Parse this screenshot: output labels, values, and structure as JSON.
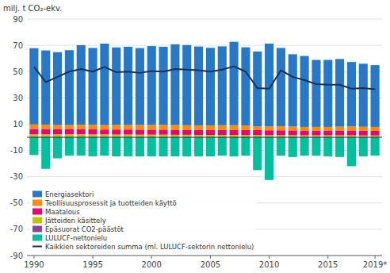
{
  "chart_data": {
    "type": "bar",
    "stacked": true,
    "y_label": "milj. t CO₂-ekv.",
    "x": [
      1990,
      1991,
      1992,
      1993,
      1994,
      1995,
      1996,
      1997,
      1998,
      1999,
      2000,
      2001,
      2002,
      2003,
      2004,
      2005,
      2006,
      2007,
      2008,
      2009,
      2010,
      2011,
      2012,
      2013,
      2014,
      2015,
      2016,
      2017,
      2018,
      2019
    ],
    "series": [
      {
        "name": "Energiasektori",
        "color": "#2878c8",
        "values": [
          58.0,
          56.5,
          55.5,
          57.0,
          60.5,
          58.5,
          62.0,
          59.0,
          59.5,
          58.5,
          60.0,
          59.5,
          61.5,
          61.0,
          60.0,
          59.0,
          60.0,
          63.5,
          59.5,
          57.0,
          63.0,
          59.5,
          55.0,
          54.0,
          51.0,
          51.0,
          51.5,
          49.0,
          48.0,
          47.0
        ]
      },
      {
        "name": "Teollisuusprosessit ja tuotteiden käyttö",
        "color": "#ff8c00",
        "values": [
          3.5,
          3.3,
          3.2,
          3.2,
          3.5,
          3.5,
          3.4,
          3.5,
          3.5,
          3.6,
          3.6,
          3.6,
          3.6,
          3.5,
          3.5,
          3.5,
          3.6,
          3.6,
          3.5,
          2.8,
          3.0,
          3.2,
          3.0,
          2.8,
          2.8,
          2.8,
          3.0,
          3.2,
          3.0,
          3.0
        ]
      },
      {
        "name": "Maatalous",
        "color": "#e8007d",
        "values": [
          4.0,
          4.0,
          3.8,
          3.8,
          3.8,
          3.8,
          3.7,
          3.8,
          3.8,
          3.8,
          3.8,
          3.8,
          3.8,
          3.8,
          3.8,
          3.8,
          3.8,
          3.8,
          3.8,
          3.8,
          3.7,
          3.7,
          3.6,
          3.6,
          3.6,
          3.6,
          3.6,
          3.6,
          3.6,
          3.5
        ]
      },
      {
        "name": "Jätteiden käsittely",
        "color": "#b8c800",
        "values": [
          2.0,
          2.0,
          2.0,
          2.0,
          2.0,
          1.9,
          1.9,
          1.8,
          1.8,
          1.7,
          1.7,
          1.7,
          1.6,
          1.6,
          1.5,
          1.5,
          1.5,
          1.5,
          1.4,
          1.4,
          1.3,
          1.3,
          1.3,
          1.2,
          1.2,
          1.2,
          1.2,
          1.2,
          1.1,
          1.1
        ]
      },
      {
        "name": "Epäsuorat CO2-päästöt",
        "color": "#9040a0",
        "values": [
          0.3,
          0.3,
          0.3,
          0.3,
          0.3,
          0.3,
          0.3,
          0.3,
          0.3,
          0.3,
          0.3,
          0.3,
          0.3,
          0.3,
          0.3,
          0.3,
          0.3,
          0.3,
          0.3,
          0.3,
          0.3,
          0.3,
          0.3,
          0.3,
          0.3,
          0.3,
          0.3,
          0.3,
          0.3,
          0.3
        ]
      },
      {
        "name": "LULUCF-nettonielu",
        "color": "#00c0a0",
        "values": [
          -13.5,
          -24.0,
          -16.0,
          -14.0,
          -14.0,
          -14.5,
          -14.0,
          -14.5,
          -14.5,
          -14.5,
          -14.5,
          -14.5,
          -14.5,
          -14.5,
          -14.5,
          -14.5,
          -14.0,
          -14.5,
          -14.0,
          -25.0,
          -32.5,
          -14.0,
          -15.0,
          -14.0,
          -14.0,
          -14.5,
          -15.0,
          -22.0,
          -14.5,
          -14.0
        ]
      },
      {
        "name": "Kaikkien sektoreiden summa (ml. LULUCF-sektorin nettonielu)",
        "type": "line",
        "color": "#1a3055",
        "values": [
          53.5,
          42.0,
          46.0,
          50.0,
          52.0,
          50.0,
          53.5,
          49.5,
          50.0,
          49.0,
          50.5,
          50.0,
          52.0,
          51.5,
          51.0,
          50.0,
          51.5,
          54.0,
          50.0,
          37.5,
          37.0,
          51.0,
          46.0,
          43.5,
          40.5,
          40.0,
          40.0,
          37.0,
          37.5,
          36.5
        ]
      }
    ],
    "xlim": [
      1989.4,
      2019.6
    ],
    "xticks": [
      1990,
      1995,
      2000,
      2005,
      2010,
      2015,
      {
        "value": 2019,
        "label": "2019*"
      }
    ],
    "ylim": [
      -90,
      90
    ],
    "yticks": [
      -90,
      -70,
      -50,
      -30,
      -10,
      10,
      30,
      50,
      70,
      90
    ],
    "grid": true,
    "legend": "lower left"
  }
}
